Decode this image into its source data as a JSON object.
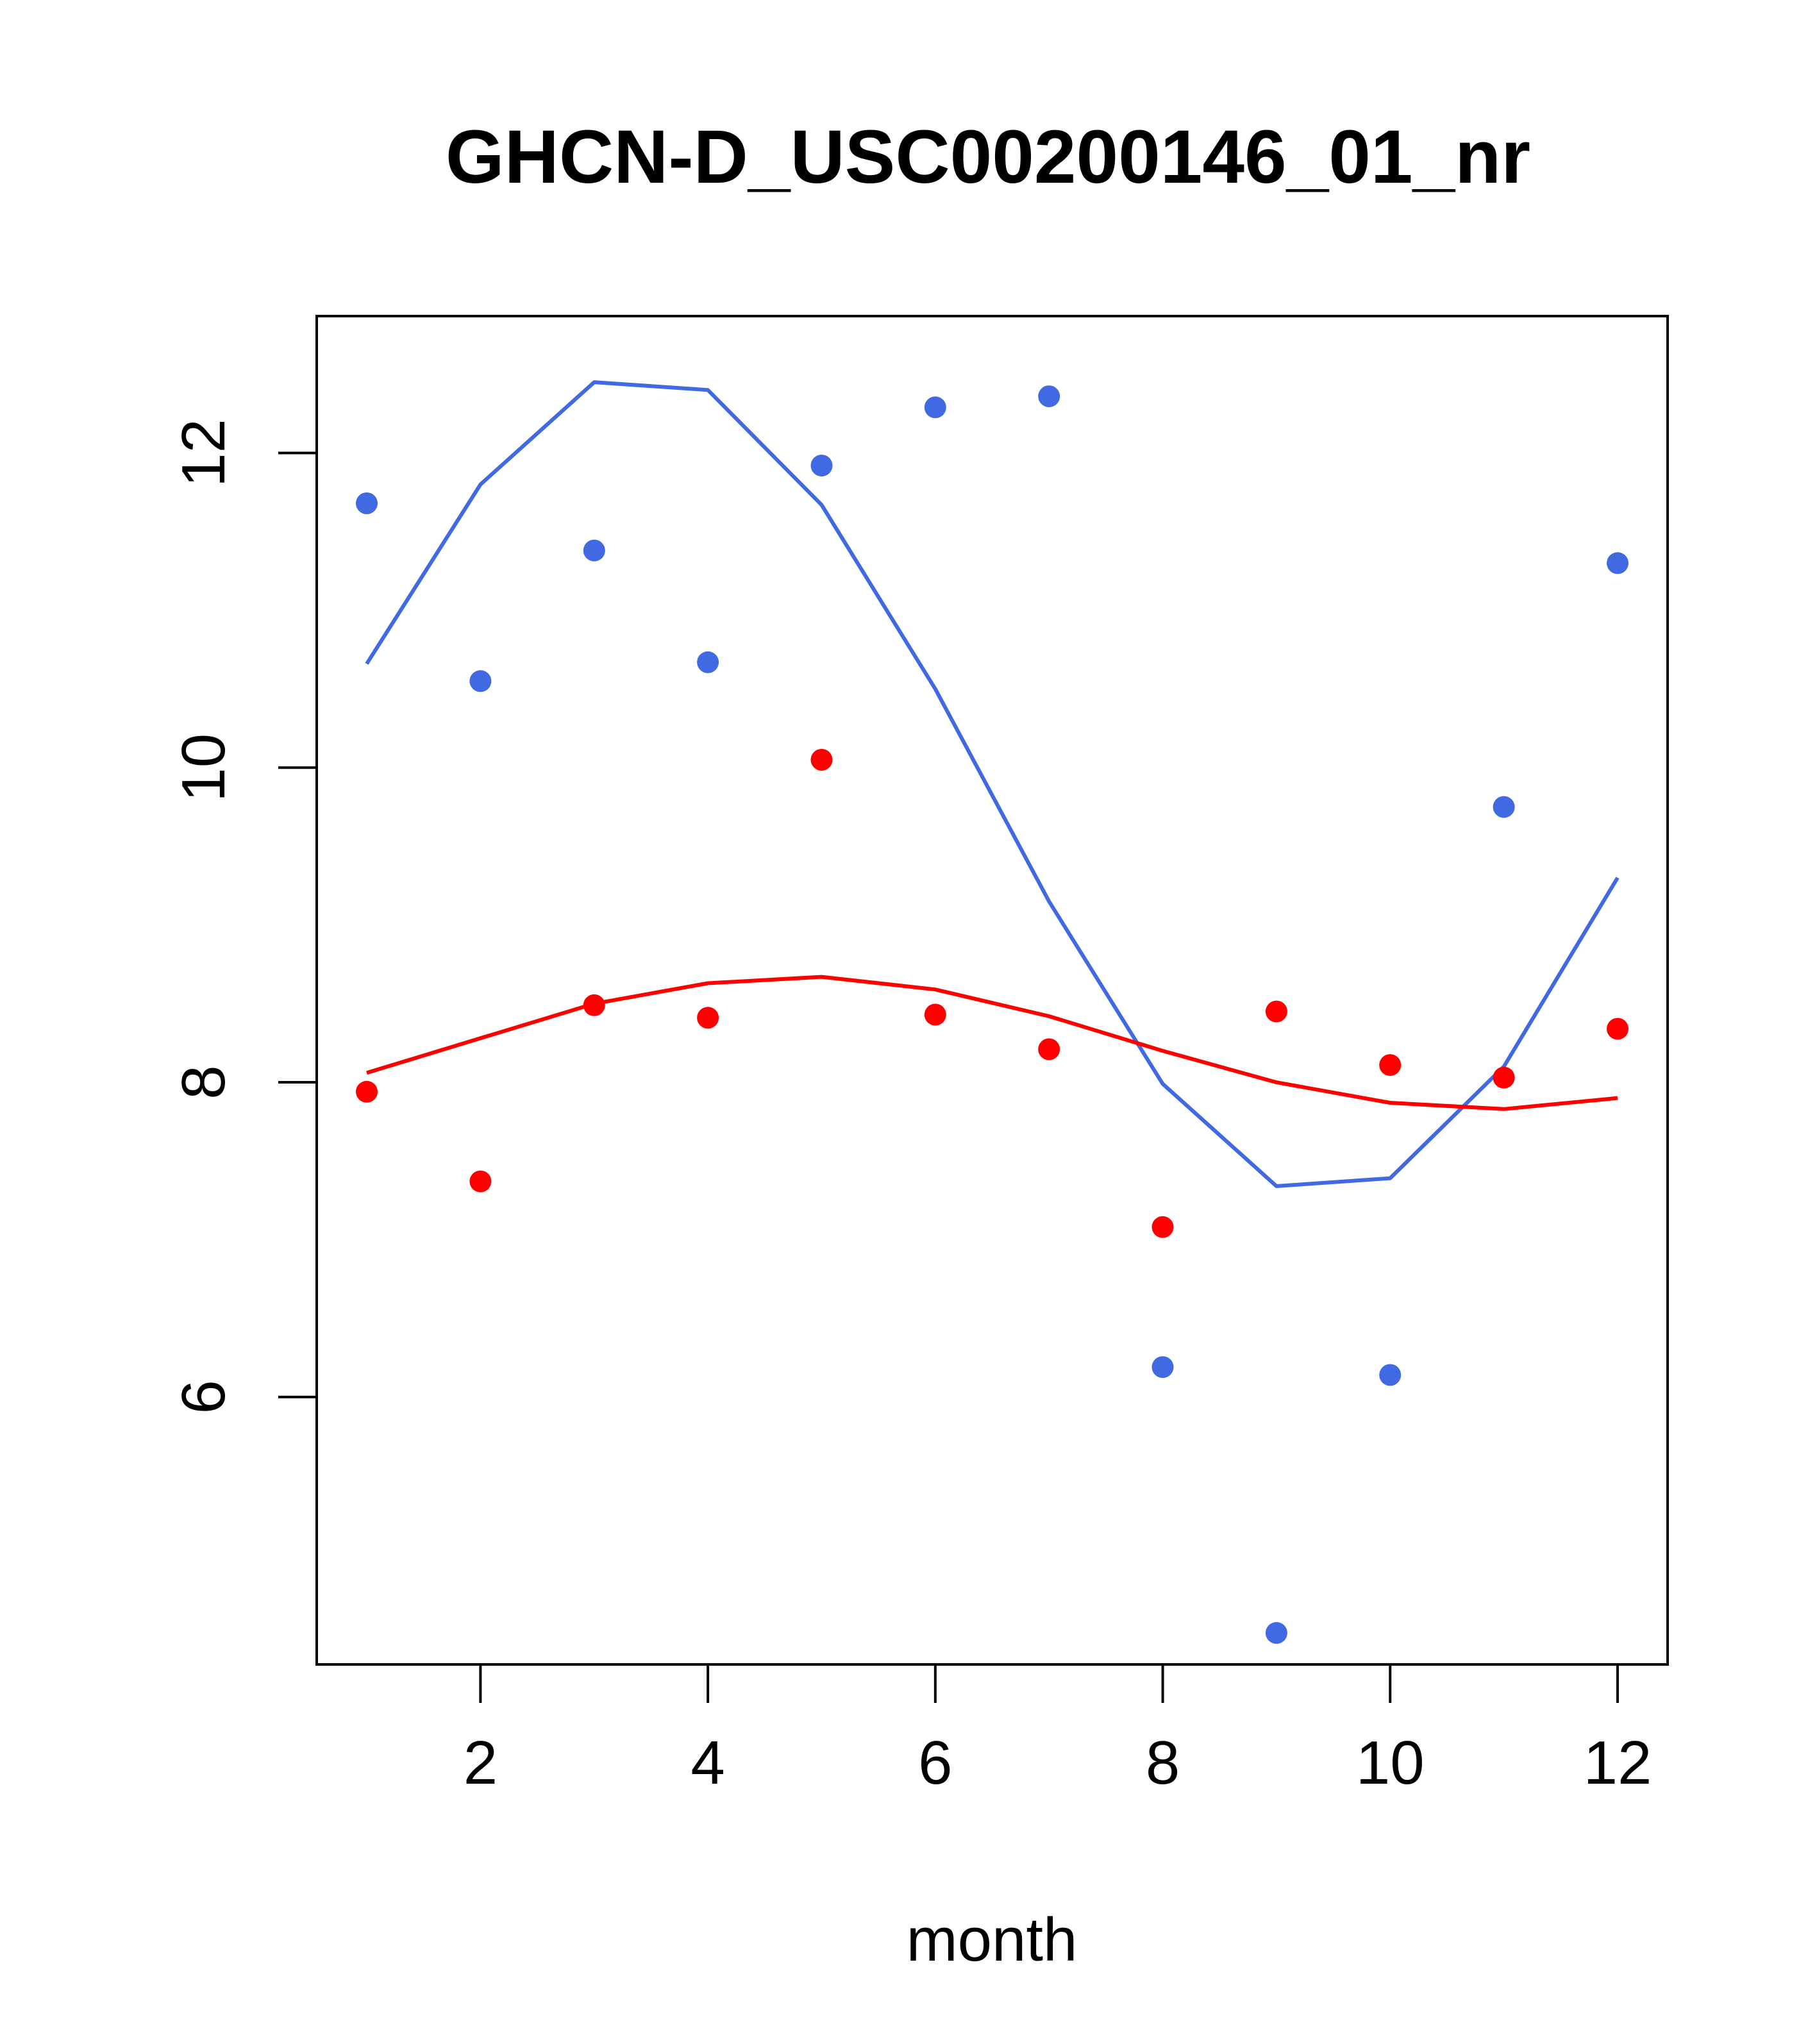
{
  "chart_data": {
    "type": "scatter",
    "title": "GHCN-D_USC00200146_01_nr",
    "xlabel": "month",
    "ylabel": "",
    "xlim": [
      0.56,
      12.44
    ],
    "ylim": [
      4.3,
      12.87
    ],
    "x_ticks": [
      2,
      4,
      6,
      8,
      10,
      12
    ],
    "y_ticks": [
      6,
      8,
      10,
      12
    ],
    "x_tick_labels": [
      "2",
      "4",
      "6",
      "8",
      "10",
      "12"
    ],
    "y_tick_labels": [
      "6",
      "8",
      "10",
      "12"
    ],
    "grid": false,
    "legend": "none",
    "x": [
      1,
      2,
      3,
      4,
      5,
      6,
      7,
      8,
      9,
      10,
      11,
      12
    ],
    "series": [
      {
        "color": "#4169E1",
        "points": [
          11.68,
          10.55,
          11.38,
          10.67,
          11.92,
          12.29,
          12.36,
          6.19,
          4.5,
          6.14,
          9.75,
          11.3
        ],
        "line": [
          10.66,
          11.8,
          12.45,
          12.4,
          11.67,
          10.5,
          9.15,
          7.99,
          7.34,
          7.39,
          8.1,
          9.3
        ]
      },
      {
        "color": "#FF0000",
        "points": [
          7.94,
          7.37,
          8.49,
          8.41,
          10.05,
          8.43,
          8.21,
          7.08,
          8.45,
          8.11,
          8.03,
          8.34
        ],
        "line": [
          8.06,
          8.28,
          8.5,
          8.63,
          8.67,
          8.59,
          8.42,
          8.2,
          8.0,
          7.87,
          7.83,
          7.9
        ]
      }
    ]
  }
}
